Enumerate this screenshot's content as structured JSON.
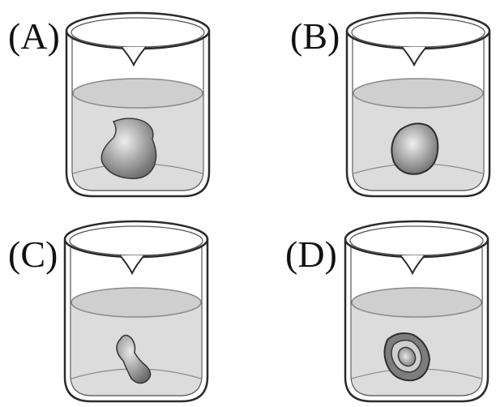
{
  "panels": [
    {
      "label": "(A)",
      "object": "irregular-blob-with-neck"
    },
    {
      "label": "(B)",
      "object": "round-blob"
    },
    {
      "label": "(C)",
      "object": "peanut-shaped-blob"
    },
    {
      "label": "(D)",
      "object": "blob-with-inner-core"
    }
  ],
  "colors": {
    "outline": "#2b2b2b",
    "water": "#dcdcdc",
    "water_surface": "#c9c9c9",
    "object_dark": "#707070",
    "object_light": "#e4e4e4"
  }
}
